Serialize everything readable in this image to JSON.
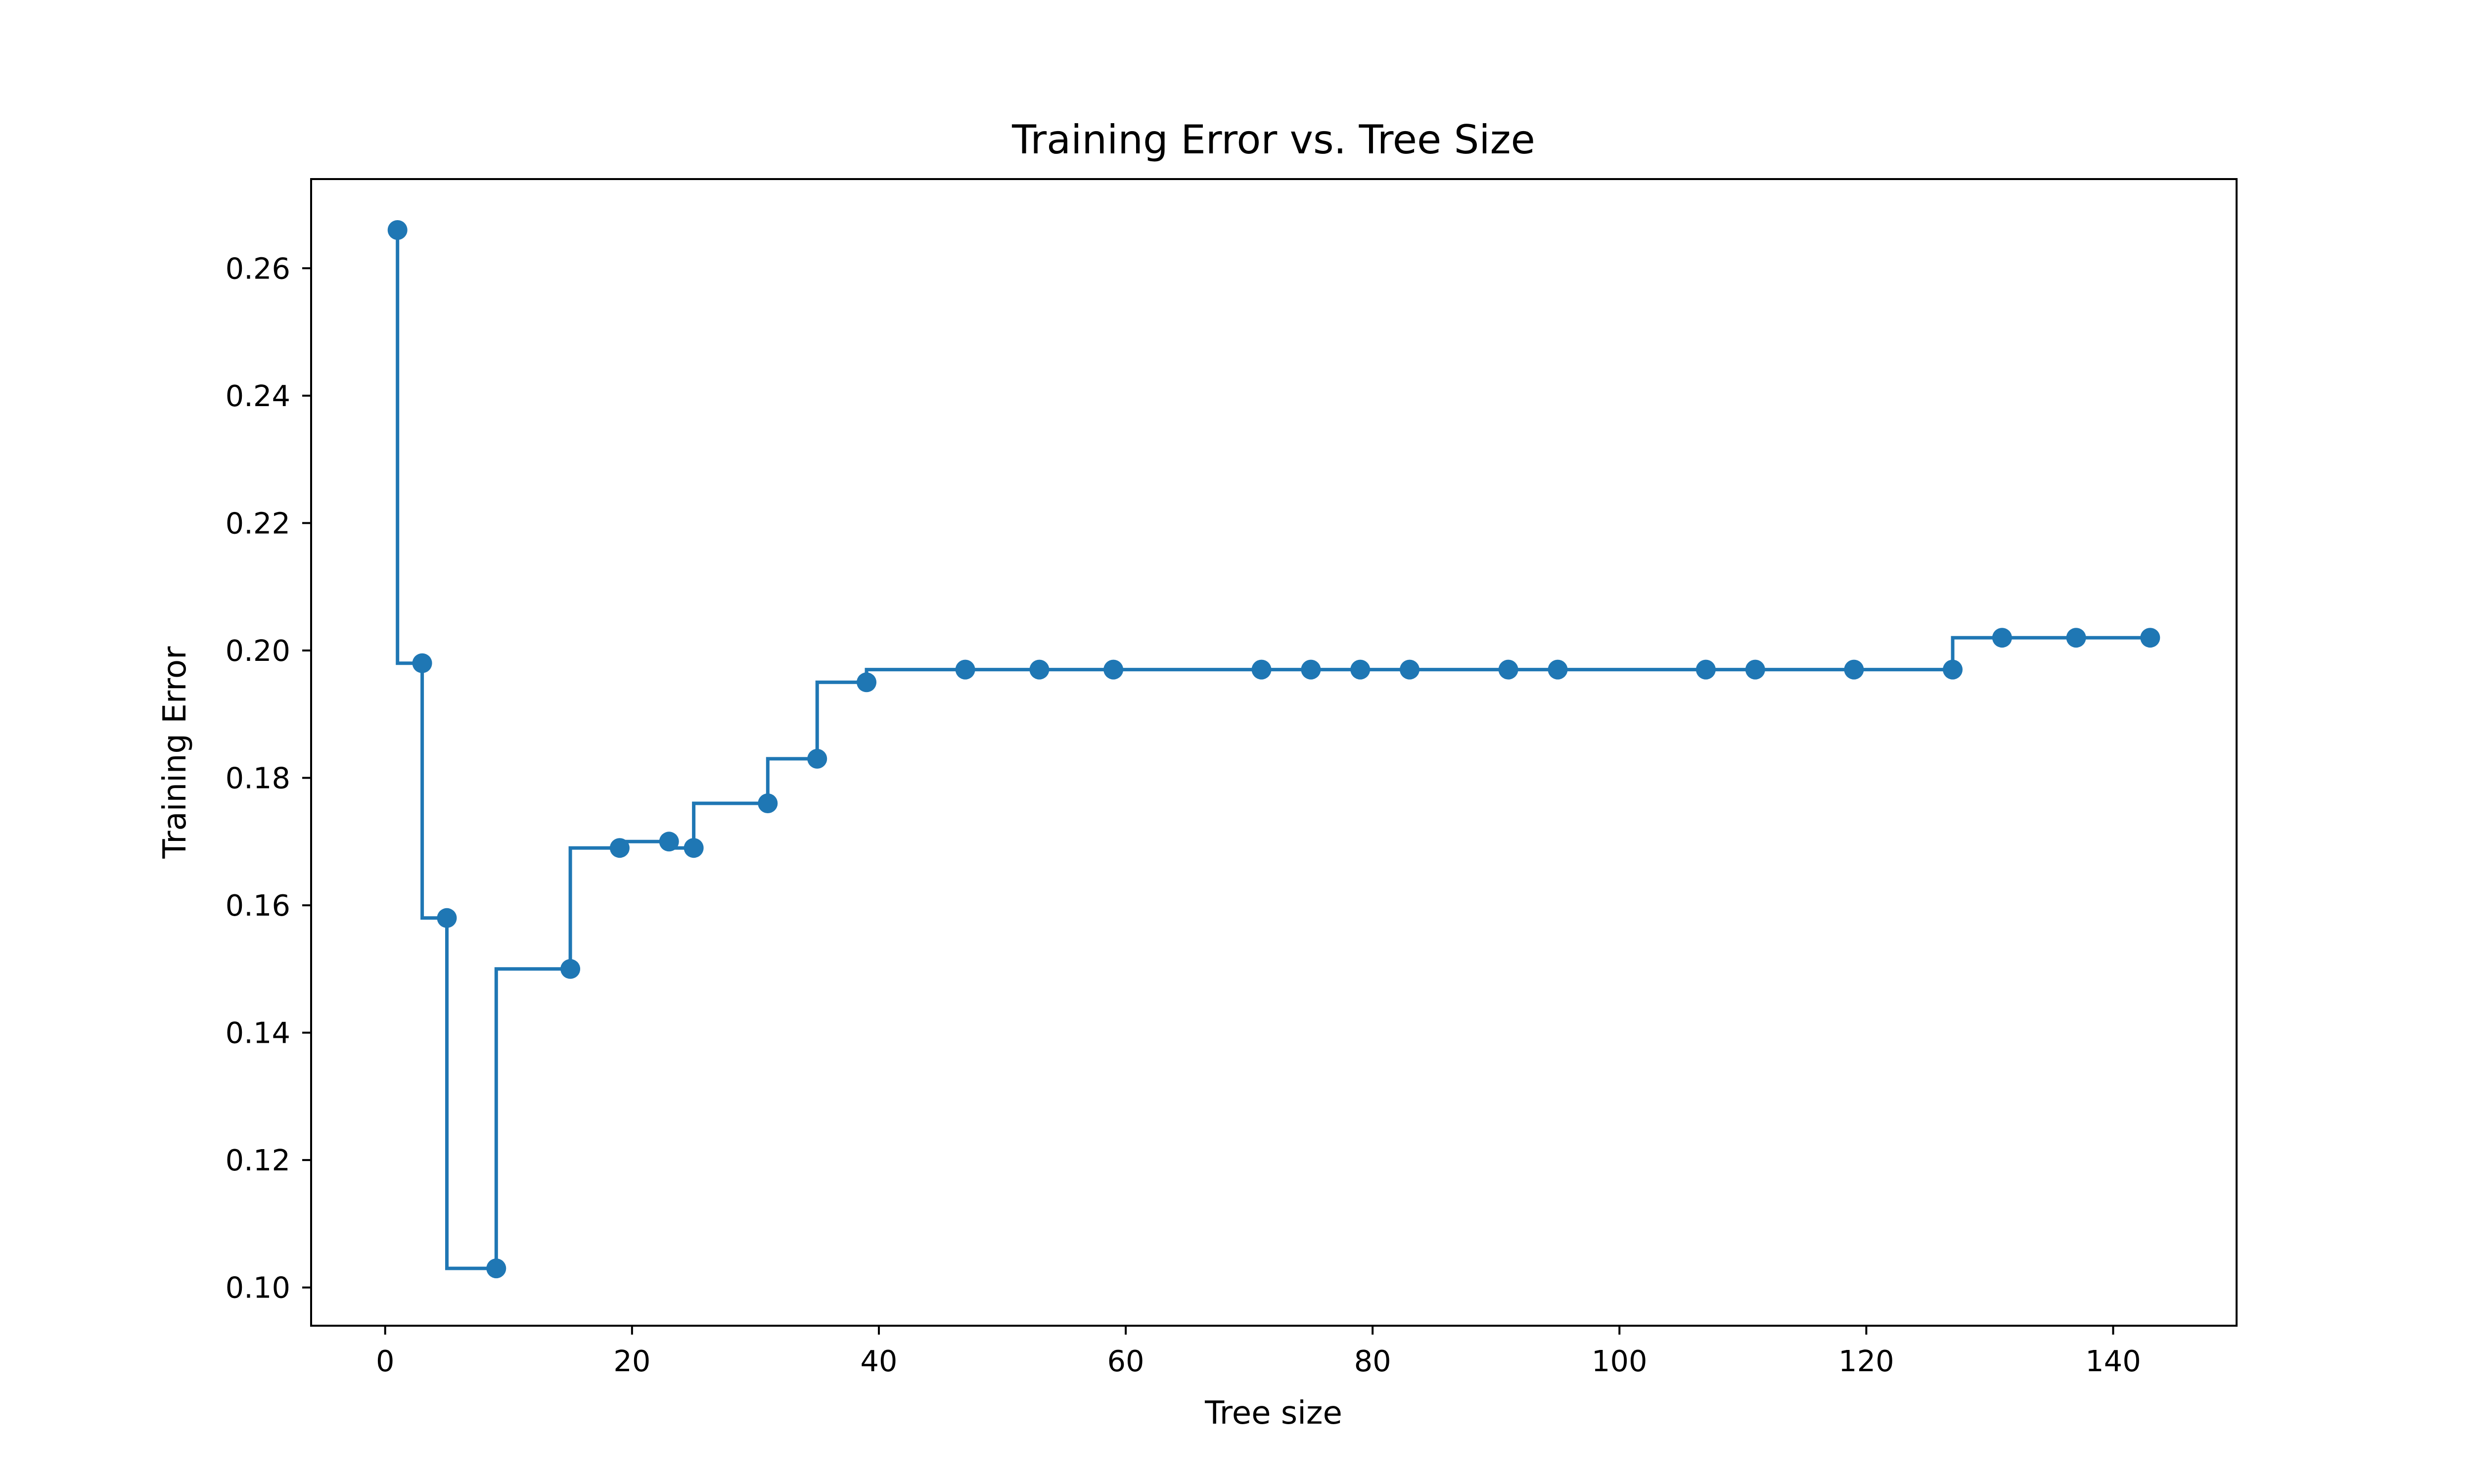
{
  "chart_data": {
    "type": "line",
    "style": "step",
    "title": "Training Error vs. Tree Size",
    "xlabel": "Tree size",
    "ylabel": "Training Error",
    "xlim": [
      -6,
      150
    ],
    "ylim": [
      0.094,
      0.274
    ],
    "xticks": [
      0,
      20,
      40,
      60,
      80,
      100,
      120,
      140
    ],
    "yticks": [
      0.1,
      0.12,
      0.14,
      0.16,
      0.18,
      0.2,
      0.22,
      0.24,
      0.26
    ],
    "grid": false,
    "legend": false,
    "series": [
      {
        "color": "#1f77b4",
        "marker": "circle",
        "x": [
          1,
          3,
          5,
          9,
          15,
          19,
          23,
          25,
          31,
          35,
          39,
          47,
          53,
          59,
          71,
          75,
          79,
          83,
          91,
          95,
          107,
          111,
          119,
          127,
          131,
          137,
          143
        ],
        "y": [
          0.266,
          0.198,
          0.158,
          0.103,
          0.15,
          0.169,
          0.17,
          0.169,
          0.176,
          0.183,
          0.195,
          0.197,
          0.197,
          0.197,
          0.197,
          0.197,
          0.197,
          0.197,
          0.197,
          0.197,
          0.197,
          0.197,
          0.197,
          0.197,
          0.202,
          0.202,
          0.202
        ]
      }
    ]
  }
}
